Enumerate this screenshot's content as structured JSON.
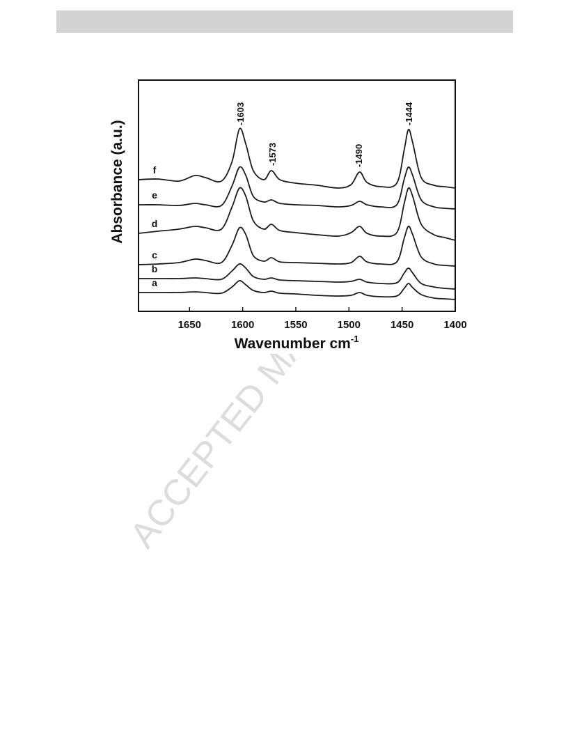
{
  "watermark": "ACCEPTED MANUSCRIPT",
  "chart_data": {
    "type": "line",
    "y_label": "Absorbance (a.u.)",
    "x_label": {
      "text": "Wavenumber cm",
      "sup": "-1"
    },
    "xlim": [
      1698,
      1400
    ],
    "ylim": [
      0,
      332
    ],
    "xticks": [
      1650,
      1600,
      1550,
      1500,
      1450,
      1400
    ],
    "annotations": [
      "-1603",
      "-1573",
      "-1490",
      "-1444"
    ],
    "x": [
      1698,
      1680,
      1660,
      1645,
      1635,
      1620,
      1610,
      1603,
      1597,
      1590,
      1580,
      1573,
      1565,
      1550,
      1530,
      1510,
      1498,
      1490,
      1483,
      1470,
      1455,
      1448,
      1444,
      1440,
      1432,
      1420,
      1410,
      1400
    ],
    "series": [
      {
        "name": "a",
        "color": "#1a1a1a",
        "values": [
          27,
          27,
          27,
          28,
          27,
          26,
          35,
          44,
          38,
          30,
          27,
          29,
          26,
          25,
          23,
          22,
          23,
          27,
          23,
          21,
          22,
          33,
          40,
          34,
          24,
          19,
          18,
          17
        ]
      },
      {
        "name": "b",
        "color": "#1a1a1a",
        "values": [
          47,
          47,
          47,
          48,
          47,
          46,
          58,
          68,
          62,
          50,
          46,
          48,
          45,
          44,
          43,
          42,
          43,
          46,
          42,
          40,
          41,
          55,
          62,
          55,
          40,
          35,
          33,
          32
        ]
      },
      {
        "name": "c",
        "color": "#1a1a1a",
        "values": [
          67,
          68,
          70,
          75,
          73,
          70,
          95,
          120,
          110,
          80,
          72,
          77,
          71,
          70,
          69,
          68,
          70,
          79,
          71,
          68,
          71,
          105,
          122,
          110,
          78,
          68,
          66,
          65
        ]
      },
      {
        "name": "d",
        "color": "#1a1a1a",
        "values": [
          112,
          115,
          118,
          122,
          120,
          118,
          150,
          177,
          165,
          130,
          118,
          125,
          116,
          113,
          110,
          108,
          113,
          122,
          112,
          108,
          113,
          155,
          177,
          165,
          125,
          110,
          106,
          102
        ]
      },
      {
        "name": "e",
        "color": "#1a1a1a",
        "values": [
          153,
          153,
          152,
          155,
          153,
          152,
          180,
          207,
          195,
          165,
          157,
          160,
          155,
          153,
          152,
          150,
          152,
          158,
          153,
          150,
          153,
          190,
          207,
          195,
          160,
          150,
          148,
          147
        ]
      },
      {
        "name": "f",
        "color": "#1a1a1a",
        "values": [
          189,
          190,
          187,
          195,
          192,
          187,
          215,
          262,
          240,
          202,
          189,
          202,
          189,
          184,
          181,
          177,
          182,
          200,
          185,
          179,
          184,
          232,
          261,
          242,
          192,
          181,
          179,
          177
        ]
      }
    ]
  }
}
